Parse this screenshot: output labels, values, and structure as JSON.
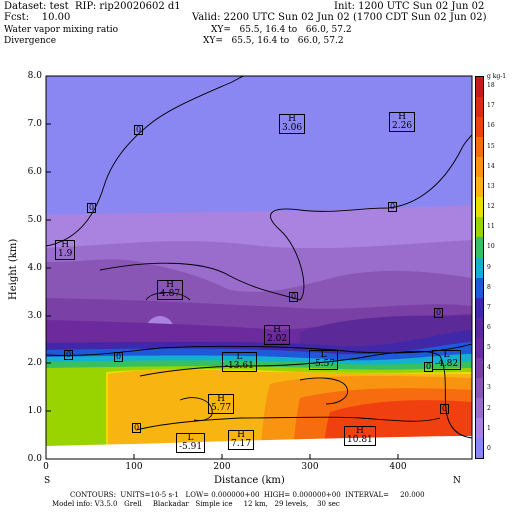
{
  "header": {
    "dataset": "Dataset: test  RIP: rip20020602 d1",
    "init": "Init: 1200 UTC Sun 02 Jun 02",
    "fcst": "Fcst:    10.00",
    "valid": "Valid: 2200 UTC Sun 02 Jun 02 (1700 CDT Sun 02 Jun 02)",
    "field1": "Water vapor mixing ratio",
    "xy1": "XY=   65.5, 16.4 to   66.0, 57.2",
    "field2": "Divergence",
    "xy2": "XY=   65.5, 16.4 to   66.0, 57.2"
  },
  "axes": {
    "ylabel": "Height (km)",
    "xlabel": "Distance (km)",
    "yticks": [
      "0.0",
      "1.0",
      "2.0",
      "3.0",
      "4.0",
      "5.0",
      "6.0",
      "7.0",
      "8.0"
    ],
    "xticks": [
      "0",
      "100",
      "200",
      "300",
      "400"
    ],
    "left_end": "S",
    "right_end": "N"
  },
  "colorbar": {
    "unit": "g kg-1",
    "labels": [
      "0",
      "1",
      "2",
      "3",
      "4",
      "5",
      "6",
      "7",
      "8",
      "9",
      "10",
      "11",
      "12",
      "13",
      "14",
      "15",
      "16",
      "17",
      "18"
    ],
    "colors": [
      "#8a86f2",
      "#aa82e0",
      "#9a6ccc",
      "#8a56b6",
      "#7a40a6",
      "#6c2a9c",
      "#5c2a98",
      "#4028a8",
      "#1f58d8",
      "#14b0d0",
      "#38c060",
      "#9ad400",
      "#e8e000",
      "#f8b410",
      "#f89410",
      "#f86c10",
      "#f04010",
      "#e02818",
      "#c81818"
    ]
  },
  "footer": {
    "line1": "CONTOURS:  UNITS=10-5 s-1   LOW= 0.000000+00  HIGH= 0.000000+00  INTERVAL=     20.000",
    "line2": "Model info: V3.5.0   Grell     Blackadar   Simple ice     12 km,   29 levels,    30 sec"
  },
  "labels": {
    "h1": [
      "H",
      "3.06"
    ],
    "h2": [
      "H",
      "2.26"
    ],
    "h3": [
      "H",
      "1.9"
    ],
    "h4": [
      "H",
      "4.87"
    ],
    "h5": [
      "H",
      "2.02"
    ],
    "h6": [
      "H",
      "5.77"
    ],
    "h7": [
      "H",
      "7.17"
    ],
    "h8": [
      "H",
      "10.81"
    ],
    "l1": [
      "L",
      "-13.61"
    ],
    "l2": [
      "L",
      "-5.57"
    ],
    "l3": [
      "L",
      "-4.82"
    ],
    "l4": [
      "L",
      "-5.91"
    ],
    "zero": "0"
  }
}
